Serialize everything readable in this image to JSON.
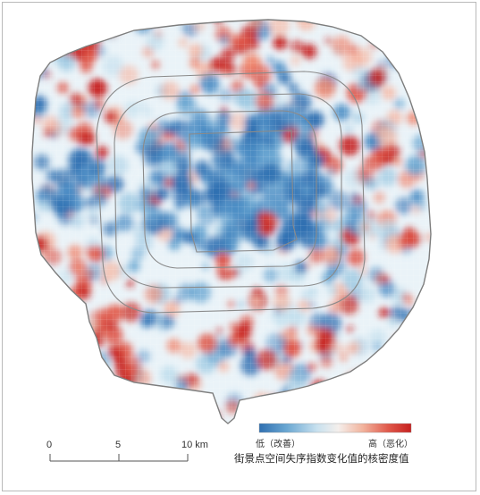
{
  "map": {
    "region": "boundary",
    "ring_roads": 4,
    "colors": {
      "boundary": "#7d7d7d",
      "ring": "#8a8a8a",
      "low": "#2f6fb1",
      "mid": "#eaf3f8",
      "high": "#d1322e"
    }
  },
  "scale_bar": {
    "ticks": [
      "0",
      "5",
      "10 km"
    ],
    "values_km": [
      0,
      5,
      10
    ]
  },
  "legend": {
    "low_label": "低（改善）",
    "high_label": "高（恶化）",
    "title": "街景点空间失序指数变化值的核密度值",
    "gradient": [
      "#2f6fb1",
      "#6aa7d2",
      "#c8e1ef",
      "#f4efec",
      "#f2b49e",
      "#e0584a",
      "#c6201f"
    ]
  }
}
